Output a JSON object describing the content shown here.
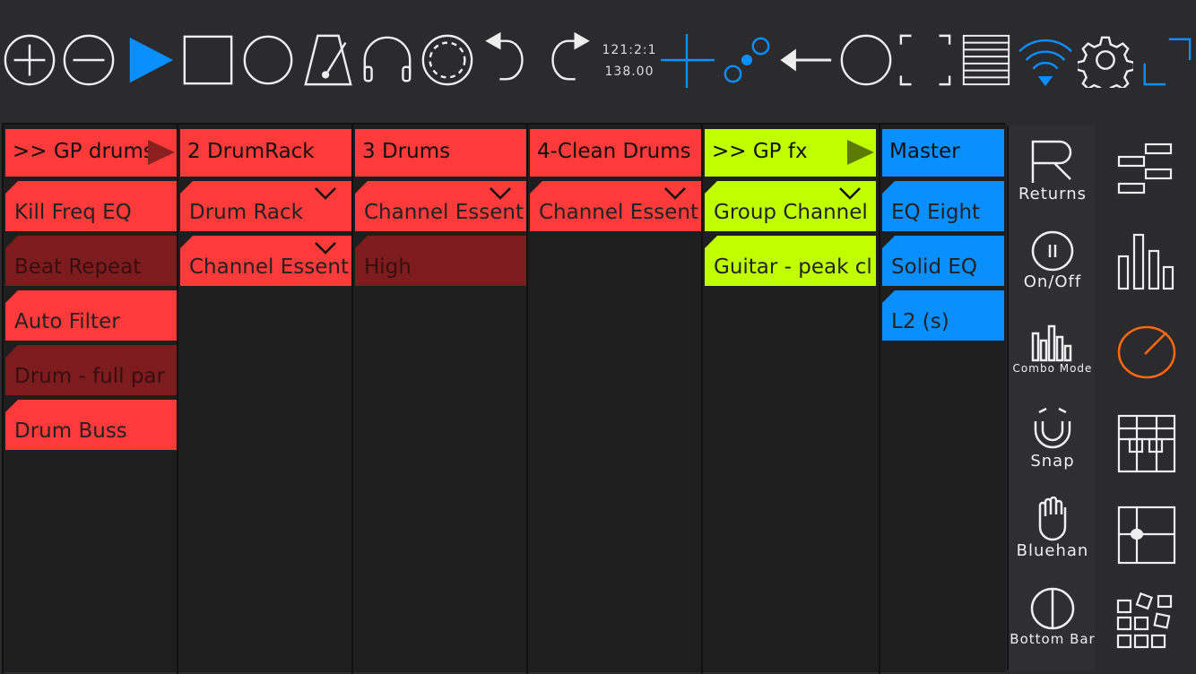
{
  "toolbar": {
    "position": "121:2:1",
    "tempo": "138.00",
    "icons": [
      "add-circle-icon",
      "remove-circle-icon",
      "play-icon",
      "stop-icon",
      "record-icon",
      "metronome-icon",
      "headphones-icon",
      "loop-icon",
      "undo-icon",
      "redo-icon",
      "add-icon",
      "automation-icon",
      "back-arrow-icon",
      "circle-icon",
      "fullscreen-icon",
      "lines-icon",
      "wifi-icon",
      "gear-icon",
      "expand-icon"
    ]
  },
  "colors": {
    "red": "#ff3a3a",
    "dark_red": "#7d1c1e",
    "lime": "#c0ff00",
    "blue": "#0a8fff",
    "orange": "#ff6a10",
    "play": "#0a8fff"
  },
  "tracks": [
    {
      "name": ">> GP drums",
      "color": "red",
      "devices": [
        {
          "name": "Kill Freq EQ",
          "on": true
        },
        {
          "name": "Beat Repeat",
          "on": false
        },
        {
          "name": "Auto Filter",
          "on": true
        },
        {
          "name": "Drum - full par",
          "on": false
        },
        {
          "name": "Drum Buss",
          "on": true
        }
      ]
    },
    {
      "name": "2 DrumRack",
      "color": "red",
      "devices": [
        {
          "name": "Drum Rack",
          "on": true,
          "expand": true
        },
        {
          "name": "Channel Essent",
          "on": true,
          "expand": true
        }
      ]
    },
    {
      "name": "3 Drums",
      "color": "red",
      "devices": [
        {
          "name": "Channel Essent",
          "on": true,
          "expand": true
        },
        {
          "name": "High",
          "on": false
        }
      ]
    },
    {
      "name": "4-Clean Drums",
      "color": "red",
      "devices": [
        {
          "name": "Channel Essent",
          "on": true,
          "expand": true
        }
      ]
    },
    {
      "name": ">> GP fx",
      "color": "lime",
      "devices": [
        {
          "name": "Group Channel",
          "on": true,
          "expand": true
        },
        {
          "name": "Guitar - peak cl",
          "on": true
        }
      ]
    },
    {
      "name": "Master",
      "color": "blue",
      "devices": [
        {
          "name": "EQ Eight",
          "on": true
        },
        {
          "name": "Solid EQ",
          "on": true
        },
        {
          "name": "L2 (s)",
          "on": true
        }
      ]
    }
  ],
  "side": {
    "returns": "Returns",
    "onoff": "On/Off",
    "combo": "Combo Mode",
    "snap": "Snap",
    "bluehand": "Bluehan",
    "bottombar": "Bottom Bar"
  },
  "far_icons": [
    "arrange-icon",
    "mixer-icon",
    "device-knob-icon",
    "keyboard-icon",
    "xy-pad-icon",
    "clips-icon"
  ]
}
